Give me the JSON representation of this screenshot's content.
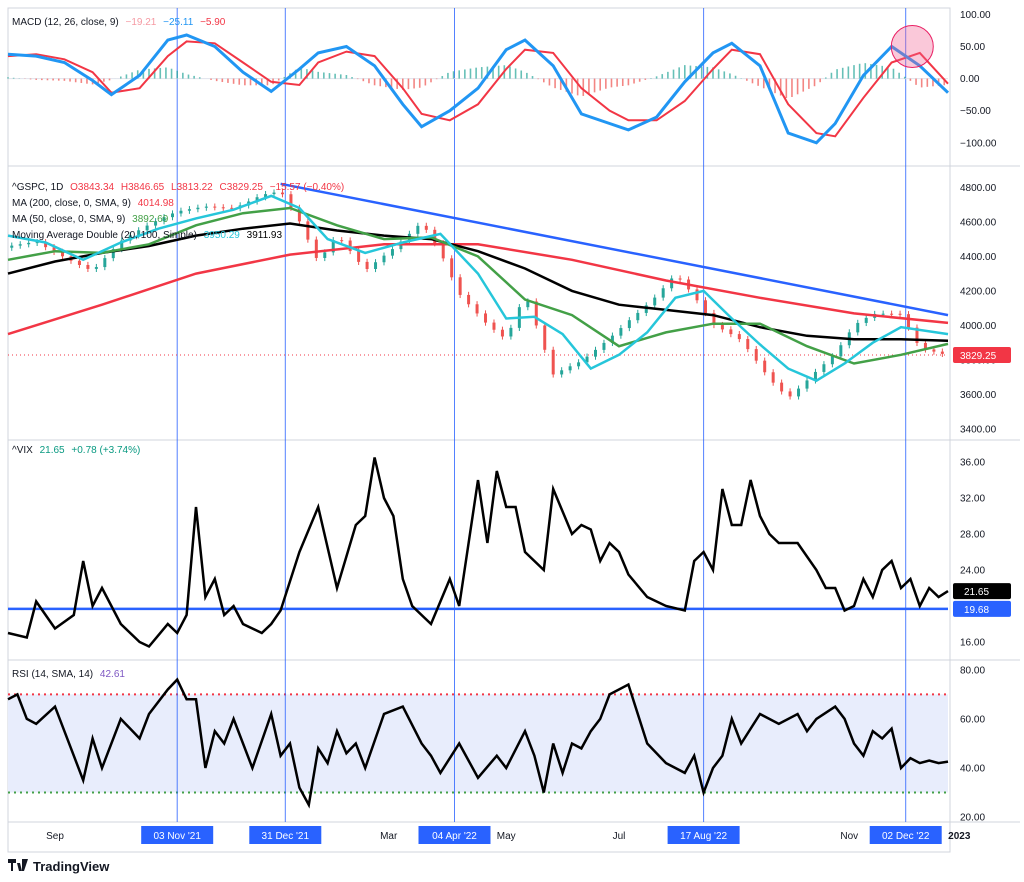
{
  "chart_data": [
    {
      "type": "line",
      "name": "MACD (12, 26, close, 9)",
      "legend": {
        "label": "MACD (12, 26, close, 9)",
        "values": [
          "−19.21",
          "−25.11",
          "−5.90"
        ]
      },
      "ylim": [
        -130,
        110
      ],
      "yticks": [
        100,
        50,
        0,
        -50,
        -100
      ],
      "ytick_labels": [
        "100.00",
        "50.00",
        "0.00",
        "−50.00",
        "−100.00"
      ],
      "series": [
        {
          "name": "MACD",
          "color": "#2196f3",
          "x": [
            0,
            3,
            6,
            9,
            11,
            14,
            17,
            19,
            22,
            25,
            28,
            31,
            33,
            36,
            39,
            42,
            44,
            47,
            50,
            53,
            55,
            58,
            61,
            64,
            66,
            69,
            72,
            75,
            77,
            80,
            83,
            86,
            88,
            91,
            94,
            97,
            100
          ],
          "values": [
            38,
            35,
            25,
            -3,
            -25,
            5,
            60,
            68,
            50,
            10,
            -20,
            15,
            40,
            50,
            20,
            -40,
            -75,
            -50,
            -15,
            45,
            60,
            20,
            -55,
            -70,
            -80,
            -60,
            -5,
            40,
            55,
            20,
            -85,
            -100,
            -70,
            5,
            50,
            20,
            -22
          ]
        },
        {
          "name": "Signal",
          "color": "#f23645",
          "x": [
            0,
            3,
            6,
            9,
            11,
            14,
            17,
            19,
            22,
            25,
            28,
            31,
            33,
            36,
            39,
            42,
            44,
            47,
            50,
            53,
            55,
            58,
            61,
            64,
            66,
            69,
            72,
            75,
            77,
            80,
            83,
            86,
            88,
            91,
            94,
            97,
            100
          ],
          "values": [
            35,
            38,
            30,
            10,
            -22,
            -15,
            35,
            58,
            55,
            25,
            -5,
            -10,
            25,
            42,
            35,
            -15,
            -55,
            -65,
            -40,
            15,
            45,
            40,
            -15,
            -50,
            -65,
            -65,
            -35,
            15,
            45,
            38,
            -40,
            -85,
            -90,
            -30,
            25,
            40,
            -8
          ]
        }
      ]
    },
    {
      "type": "line",
      "name": "^GSPC, 1D",
      "legend": [
        {
          "label": "^GSPC, 1D",
          "values": [
            "O3843.34",
            "H3846.65",
            "L3813.22",
            "C3829.25",
            "−15.57 (−0.40%)"
          ]
        },
        {
          "label": "MA (200, close, 0, SMA, 9)",
          "values": [
            "4014.98"
          ]
        },
        {
          "label": "MA (50, close, 0, SMA, 9)",
          "values": [
            "3892.69"
          ]
        },
        {
          "label": "Moving Average Double (20, 100, Simple)",
          "values": [
            "3950.29",
            "3911.93"
          ]
        }
      ],
      "last_price_label": "3829.25",
      "ylim": [
        3360,
        4900
      ],
      "yticks": [
        4800,
        4600,
        4400,
        4200,
        4000,
        3800,
        3600,
        3400
      ],
      "ytick_labels": [
        "4800.00",
        "4600.00",
        "4400.00",
        "4200.00",
        "4000.00",
        "3800.00",
        "3600.00",
        "3400.00"
      ],
      "trendline": {
        "x": [
          29,
          100
        ],
        "values": [
          4820,
          4060
        ],
        "color": "#2962ff"
      },
      "series": [
        {
          "name": "Price",
          "color": "#3a3a3a",
          "x": [
            0,
            3,
            6,
            9,
            12,
            15,
            18,
            21,
            24,
            27,
            29,
            31,
            33,
            35,
            38,
            41,
            44,
            46,
            48,
            51,
            53,
            55,
            58,
            61,
            63,
            66,
            69,
            71,
            73,
            75,
            78,
            81,
            83,
            86,
            88,
            90,
            92,
            95,
            97,
            100
          ],
          "values": [
            4450,
            4500,
            4420,
            4330,
            4480,
            4560,
            4640,
            4690,
            4700,
            4780,
            4790,
            4600,
            4350,
            4500,
            4300,
            4450,
            4620,
            4450,
            4200,
            4000,
            3900,
            4160,
            3700,
            3800,
            3900,
            4050,
            4180,
            4290,
            4150,
            3980,
            3900,
            3700,
            3600,
            3760,
            3850,
            4000,
            4050,
            4040,
            3850,
            3829
          ]
        },
        {
          "name": "MA 200",
          "color": "#f23645",
          "x": [
            0,
            10,
            20,
            30,
            40,
            50,
            60,
            70,
            80,
            90,
            100
          ],
          "values": [
            3950,
            4120,
            4300,
            4410,
            4470,
            4470,
            4380,
            4260,
            4160,
            4070,
            4015
          ]
        },
        {
          "name": "MA 50",
          "color": "#43a047",
          "x": [
            0,
            5,
            10,
            15,
            20,
            25,
            30,
            35,
            40,
            45,
            50,
            55,
            60,
            65,
            70,
            75,
            80,
            85,
            90,
            95,
            100
          ],
          "values": [
            4380,
            4430,
            4420,
            4470,
            4580,
            4650,
            4680,
            4580,
            4500,
            4510,
            4400,
            4150,
            4060,
            3880,
            3960,
            4010,
            4010,
            3880,
            3780,
            3830,
            3893
          ]
        },
        {
          "name": "MA 100",
          "color": "#000000",
          "x": [
            0,
            5,
            10,
            15,
            20,
            25,
            30,
            35,
            40,
            45,
            50,
            55,
            60,
            65,
            70,
            75,
            80,
            85,
            90,
            95,
            100
          ],
          "values": [
            4300,
            4370,
            4420,
            4460,
            4520,
            4560,
            4590,
            4550,
            4520,
            4500,
            4430,
            4330,
            4200,
            4120,
            4090,
            4060,
            3990,
            3940,
            3920,
            3920,
            3912
          ]
        },
        {
          "name": "MA 20",
          "color": "#26c6da",
          "x": [
            0,
            4,
            8,
            12,
            16,
            20,
            24,
            28,
            31,
            34,
            38,
            42,
            46,
            50,
            53,
            56,
            59,
            62,
            65,
            68,
            71,
            74,
            77,
            80,
            83,
            86,
            89,
            92,
            95,
            100
          ],
          "values": [
            4520,
            4480,
            4380,
            4480,
            4560,
            4620,
            4670,
            4750,
            4680,
            4500,
            4420,
            4480,
            4530,
            4300,
            4040,
            4050,
            3950,
            3750,
            3830,
            3960,
            4160,
            4200,
            4040,
            3890,
            3750,
            3680,
            3780,
            3900,
            3990,
            3950
          ]
        }
      ]
    },
    {
      "type": "line",
      "name": "^VIX",
      "legend": {
        "label": "^VIX",
        "values": [
          "21.65",
          "+0.78 (+3.74%)"
        ]
      },
      "last_value_label": "21.65",
      "hline": {
        "value": 19.68,
        "label": "19.68",
        "color": "#2962ff"
      },
      "ylim": [
        14,
        38
      ],
      "yticks": [
        36,
        32,
        28,
        24,
        20,
        16
      ],
      "ytick_labels": [
        "36.00",
        "32.00",
        "28.00",
        "24.00",
        "20.00",
        "16.00"
      ],
      "series": [
        {
          "name": "VIX",
          "color": "#000000",
          "x": [
            0,
            2,
            3,
            5,
            7,
            8,
            9,
            10,
            12,
            14,
            15,
            17,
            18,
            19,
            20,
            21,
            22,
            23,
            24,
            25,
            27,
            28,
            29,
            31,
            33,
            35,
            37,
            38,
            39,
            40,
            41,
            42,
            43,
            45,
            47,
            48,
            50,
            51,
            52,
            53,
            54,
            55,
            57,
            58,
            60,
            61,
            62,
            63,
            64,
            65,
            66,
            68,
            70,
            72,
            73,
            74,
            75,
            76,
            77,
            78,
            79,
            80,
            81,
            82,
            84,
            86,
            87,
            88,
            89,
            90,
            91,
            92,
            93,
            94,
            95,
            96,
            97,
            98,
            99,
            100
          ],
          "values": [
            17,
            16.5,
            20.5,
            17.5,
            19,
            25,
            20,
            22,
            18,
            16,
            15.5,
            18,
            17,
            19,
            31,
            21,
            23,
            19,
            20,
            18,
            17,
            18,
            19.5,
            26,
            31,
            22,
            29,
            30,
            36.5,
            32,
            30,
            23,
            20,
            18,
            23,
            20,
            34,
            27,
            35,
            31,
            31,
            26,
            24,
            33,
            28,
            29,
            28.5,
            25,
            27,
            26,
            23.5,
            21,
            20,
            19.5,
            25,
            26,
            24,
            33,
            29,
            29,
            34,
            30,
            28,
            27,
            27,
            24,
            22,
            22,
            19.5,
            20,
            23,
            21,
            24,
            25,
            22,
            23,
            20,
            22,
            21,
            21.65
          ]
        }
      ]
    },
    {
      "type": "line",
      "name": "RSI (14, SMA, 14)",
      "legend": {
        "label": "RSI (14, SMA, 14)",
        "values": [
          "42.61"
        ]
      },
      "ylim": [
        18,
        84
      ],
      "yticks": [
        80,
        60,
        40,
        20
      ],
      "ytick_labels": [
        "80.00",
        "60.00",
        "40.00",
        "20.00"
      ],
      "bands": {
        "upper": 70,
        "lower": 30
      },
      "series": [
        {
          "name": "RSI",
          "color": "#000000",
          "x": [
            0,
            1,
            2,
            3,
            5,
            7,
            8,
            9,
            10,
            12,
            14,
            15,
            17,
            18,
            19,
            20,
            21,
            22,
            23,
            24,
            26,
            28,
            29,
            30,
            31,
            32,
            33,
            34,
            35,
            36,
            37,
            38,
            40,
            42,
            44,
            45,
            46,
            48,
            50,
            52,
            53,
            55,
            56,
            57,
            58,
            59,
            60,
            61,
            62,
            63,
            64,
            66,
            68,
            70,
            72,
            73,
            74,
            75,
            76,
            77,
            78,
            80,
            82,
            84,
            85,
            86,
            88,
            89,
            90,
            91,
            92,
            93,
            94,
            95,
            96,
            97,
            98,
            99,
            100
          ],
          "values": [
            68,
            70,
            60,
            58,
            65,
            45,
            35,
            52,
            40,
            60,
            52,
            62,
            72,
            76,
            68,
            68,
            40,
            55,
            50,
            60,
            40,
            62,
            45,
            50,
            32,
            25,
            48,
            42,
            55,
            46,
            50,
            40,
            62,
            65,
            50,
            45,
            38,
            50,
            36,
            45,
            40,
            55,
            45,
            30,
            50,
            38,
            50,
            48,
            55,
            60,
            70,
            74,
            50,
            42,
            38,
            45,
            30,
            40,
            45,
            60,
            50,
            62,
            58,
            62,
            55,
            60,
            65,
            60,
            50,
            45,
            55,
            52,
            56,
            40,
            44,
            42,
            43,
            42,
            42.61
          ]
        }
      ]
    }
  ],
  "x_axis": {
    "labels": [
      {
        "text": "Sep",
        "pos": 5,
        "highlight": false
      },
      {
        "text": "03 Nov '21",
        "pos": 18,
        "highlight": true
      },
      {
        "text": "31 Dec '21",
        "pos": 29.5,
        "highlight": true
      },
      {
        "text": "Mar",
        "pos": 40.5,
        "highlight": false
      },
      {
        "text": "04 Apr '22",
        "pos": 47.5,
        "highlight": true
      },
      {
        "text": "May",
        "pos": 53,
        "highlight": false
      },
      {
        "text": "Jul",
        "pos": 65,
        "highlight": false
      },
      {
        "text": "17 Aug '22",
        "pos": 74,
        "highlight": true
      },
      {
        "text": "Nov",
        "pos": 89.5,
        "highlight": false
      },
      {
        "text": "02 Dec '22",
        "pos": 95.5,
        "highlight": true
      },
      {
        "text": "2023",
        "pos": 101.2,
        "highlight": false
      }
    ],
    "vlines": [
      18,
      29.5,
      47.5,
      74,
      95.5
    ]
  },
  "brand": {
    "name": "TradingView"
  },
  "colors": {
    "accent": "#2962ff",
    "highlight_circle": "#f06292"
  }
}
